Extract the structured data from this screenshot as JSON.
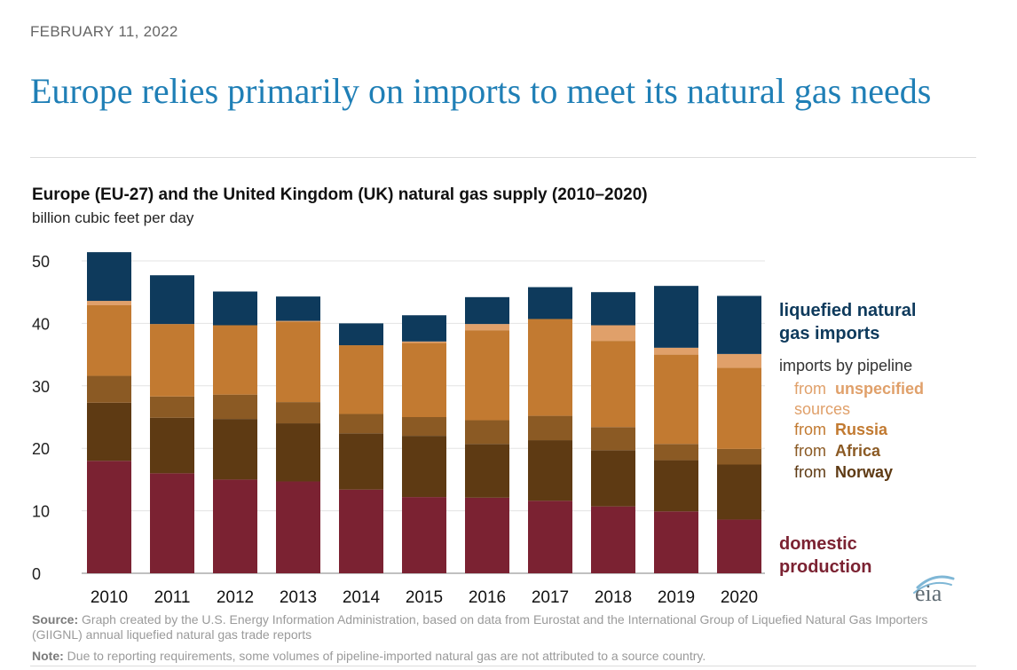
{
  "date": "FEBRUARY 11, 2022",
  "headline": "Europe relies primarily on imports to meet its natural gas needs",
  "chart_data": {
    "type": "bar",
    "stacked": true,
    "title": "Europe (EU-27) and the United Kingdom (UK) natural gas supply (2010–2020)",
    "ylabel": "billion cubic feet per day",
    "xlabel": "",
    "ylim": [
      0,
      50
    ],
    "yticks": [
      0,
      10,
      20,
      30,
      40,
      50
    ],
    "grid": true,
    "categories": [
      "2010",
      "2011",
      "2012",
      "2013",
      "2014",
      "2015",
      "2016",
      "2017",
      "2018",
      "2019",
      "2020"
    ],
    "series": [
      {
        "name": "domestic production",
        "color": "#7b2232",
        "values": [
          18.0,
          16.0,
          15.0,
          14.7,
          13.4,
          12.2,
          12.1,
          11.6,
          10.7,
          9.9,
          8.6
        ]
      },
      {
        "name": "from Norway",
        "color": "#5e3a13",
        "values": [
          9.3,
          8.9,
          9.7,
          9.3,
          9.0,
          9.8,
          8.6,
          9.7,
          9.0,
          8.2,
          8.8
        ]
      },
      {
        "name": "from Africa",
        "color": "#8b5a24",
        "values": [
          4.3,
          3.4,
          3.9,
          3.4,
          3.1,
          3.0,
          3.8,
          3.9,
          3.7,
          2.6,
          2.5
        ]
      },
      {
        "name": "from Russia",
        "color": "#c27a31",
        "values": [
          11.3,
          11.6,
          11.1,
          12.9,
          11.0,
          11.9,
          14.4,
          15.5,
          13.8,
          14.3,
          13.0
        ]
      },
      {
        "name": "from unspecified sources",
        "color": "#e0a06a",
        "values": [
          0.7,
          0.0,
          0.0,
          0.1,
          0.0,
          0.2,
          1.0,
          0.0,
          2.5,
          1.1,
          2.2
        ]
      },
      {
        "name": "liquefied natural gas imports",
        "color": "#0e3a5c",
        "values": [
          7.8,
          7.8,
          5.4,
          3.9,
          3.5,
          4.2,
          4.3,
          5.1,
          5.3,
          9.9,
          9.3
        ]
      }
    ],
    "legend": {
      "placement": "right",
      "lng_line1": "liquefied natural",
      "lng_line2": "gas imports",
      "pipeline_header": "imports by pipeline",
      "from_word": "from",
      "unspecified_line1": "unspecified",
      "unspecified_line2": "sources",
      "russia": "Russia",
      "africa": "Africa",
      "norway": "Norway",
      "domestic_line1": "domestic",
      "domestic_line2": "production"
    }
  },
  "logo_text": "eia",
  "source_label": "Source:",
  "source_text": "Graph created by the U.S. Energy Information Administration, based on data from Eurostat and the International Group of Liquefied Natural Gas Importers (GIIGNL) annual liquefied natural gas trade reports",
  "note_label": "Note:",
  "note_text": "Due to reporting requirements, some volumes of pipeline-imported natural gas are not attributed to a source country.",
  "colors": {
    "headline": "#1f7fb6",
    "lng": "#0e3a5c",
    "unspecified": "#e0a06a",
    "russia": "#c27a31",
    "africa": "#8b5a24",
    "norway": "#5e3a13",
    "domestic": "#7b2232",
    "logo": "#5f6b73"
  }
}
